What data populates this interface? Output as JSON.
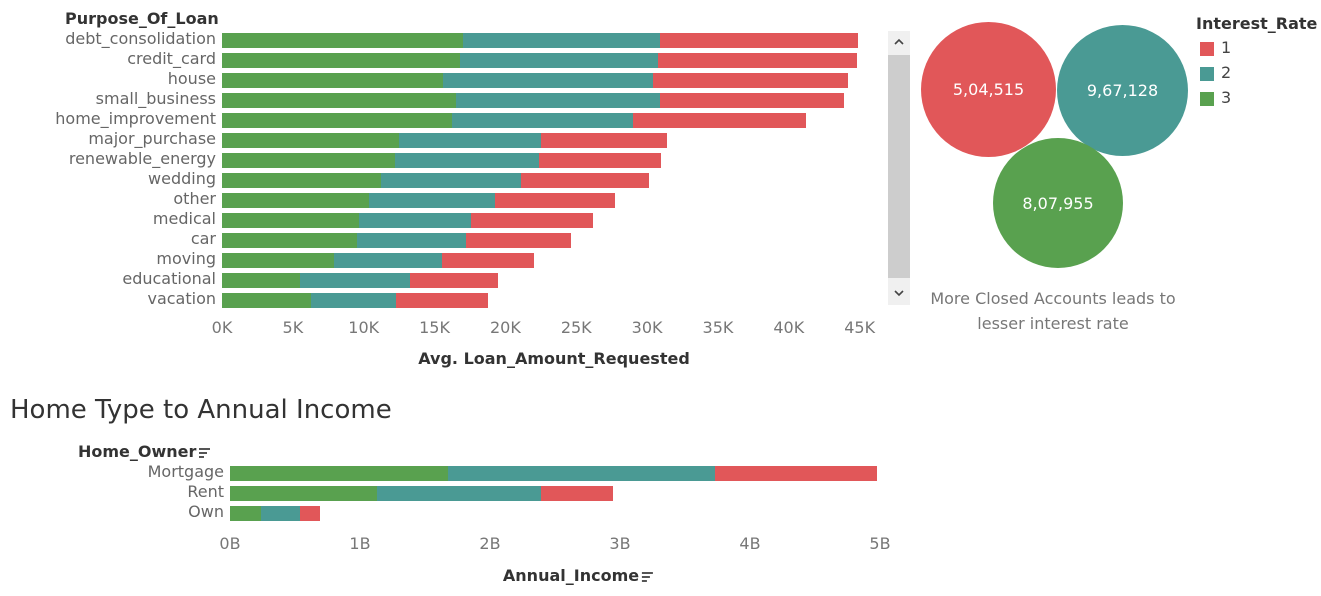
{
  "colors": {
    "rate1": "#E15759",
    "rate2": "#4A9A94",
    "rate3": "#59A14F"
  },
  "chart_data": [
    {
      "type": "bar",
      "orientation": "horizontal",
      "stacked": true,
      "dimension_header": "Purpose_Of_Loan",
      "xlabel": "Avg. Loan_Amount_Requested",
      "xlim": [
        0,
        47000
      ],
      "x_ticks": [
        "0K",
        "5K",
        "10K",
        "15K",
        "20K",
        "25K",
        "30K",
        "35K",
        "40K",
        "45K"
      ],
      "x_tick_values": [
        0,
        5000,
        10000,
        15000,
        20000,
        25000,
        30000,
        35000,
        40000,
        45000
      ],
      "categories": [
        "debt_consolidation",
        "credit_card",
        "house",
        "small_business",
        "home_improvement",
        "major_purchase",
        "renewable_energy",
        "wedding",
        "other",
        "medical",
        "car",
        "moving",
        "educational",
        "vacation"
      ],
      "series": [
        {
          "name": "3",
          "values": [
            17000,
            16800,
            15600,
            16500,
            16200,
            12500,
            12200,
            11200,
            10400,
            9700,
            9500,
            7900,
            5500,
            6300
          ]
        },
        {
          "name": "2",
          "values": [
            13900,
            14000,
            14800,
            14400,
            12800,
            10000,
            10200,
            9900,
            8900,
            7900,
            7700,
            7600,
            7800,
            6000
          ]
        },
        {
          "name": "1",
          "values": [
            14000,
            14000,
            13800,
            13000,
            12200,
            8900,
            8600,
            9000,
            8400,
            8600,
            7400,
            6500,
            6200,
            6500
          ]
        }
      ]
    },
    {
      "type": "bubble",
      "legend_title": "Interest_Rate",
      "legend": [
        "1",
        "2",
        "3"
      ],
      "bubbles": [
        {
          "name": "1",
          "label": "5,04,515",
          "value": 504515
        },
        {
          "name": "2",
          "label": "9,67,128",
          "value": 967128
        },
        {
          "name": "3",
          "label": "8,07,955",
          "value": 807955
        }
      ],
      "caption": "More Closed Accounts leads to lesser interest rate"
    },
    {
      "type": "bar",
      "orientation": "horizontal",
      "stacked": true,
      "title": "Home Type to Annual Income",
      "dimension_header": "Home_Owner",
      "xlabel": "Annual_Income",
      "xlim": [
        0,
        5200000000
      ],
      "x_ticks": [
        "0B",
        "1B",
        "2B",
        "3B",
        "4B",
        "5B"
      ],
      "x_tick_values": [
        0,
        1000000000,
        2000000000,
        3000000000,
        4000000000,
        5000000000
      ],
      "categories": [
        "Mortgage",
        "Rent",
        "Own"
      ],
      "series": [
        {
          "name": "3",
          "values": [
            1680000000,
            1130000000,
            240000000
          ]
        },
        {
          "name": "2",
          "values": [
            2050000000,
            1260000000,
            300000000
          ]
        },
        {
          "name": "1",
          "values": [
            1250000000,
            560000000,
            150000000
          ]
        }
      ]
    }
  ]
}
